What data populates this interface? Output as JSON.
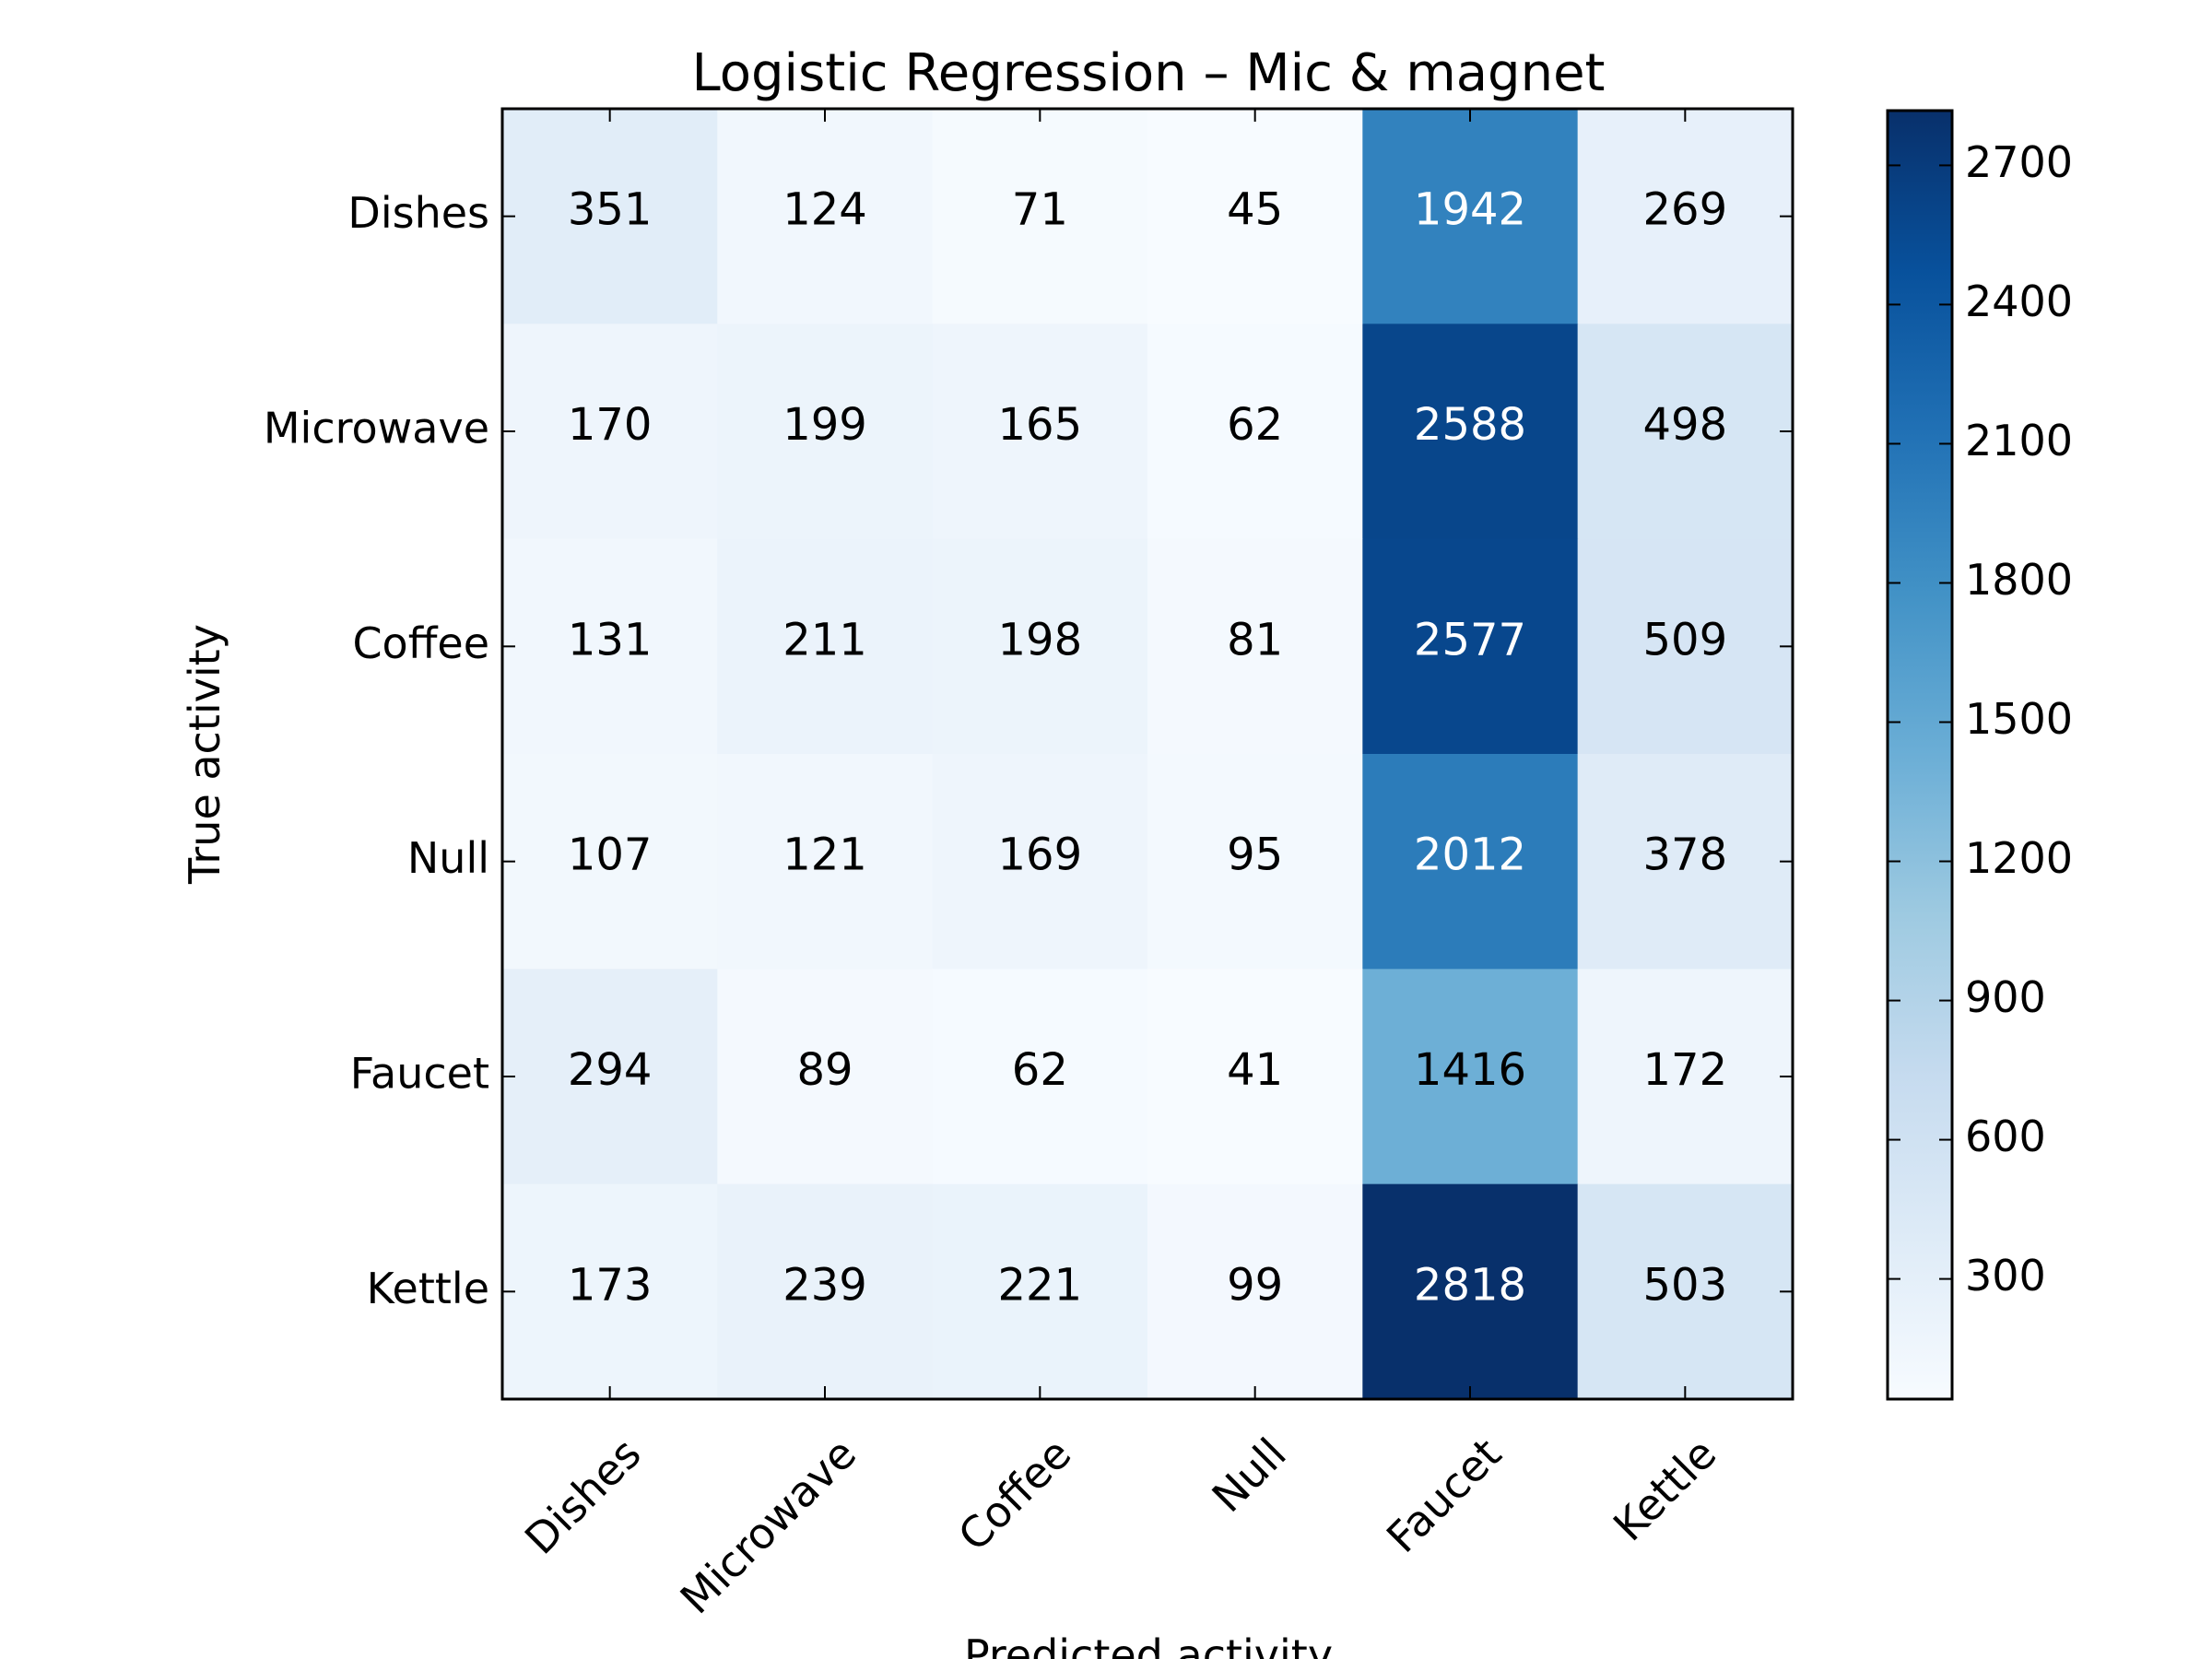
{
  "chart_data": {
    "type": "heatmap",
    "title": "Logistic Regression – Mic & magnet",
    "xlabel": "Predicted activity",
    "ylabel": "True activity",
    "x_categories": [
      "Dishes",
      "Microwave",
      "Coffee",
      "Null",
      "Faucet",
      "Kettle"
    ],
    "y_categories": [
      "Dishes",
      "Microwave",
      "Coffee",
      "Null",
      "Faucet",
      "Kettle"
    ],
    "values": [
      [
        351,
        124,
        71,
        45,
        1942,
        269
      ],
      [
        170,
        199,
        165,
        62,
        2588,
        498
      ],
      [
        131,
        211,
        198,
        81,
        2577,
        509
      ],
      [
        107,
        121,
        169,
        95,
        2012,
        378
      ],
      [
        294,
        89,
        62,
        41,
        1416,
        172
      ],
      [
        173,
        239,
        221,
        99,
        2818,
        503
      ]
    ],
    "colormap": "Blues",
    "color_range": [
      41,
      2818
    ],
    "colorbar_ticks": [
      300,
      600,
      900,
      1200,
      1500,
      1800,
      2100,
      2400,
      2700
    ],
    "label_color_light": "#ffffff",
    "label_color_dark": "#000000",
    "grid": false
  }
}
